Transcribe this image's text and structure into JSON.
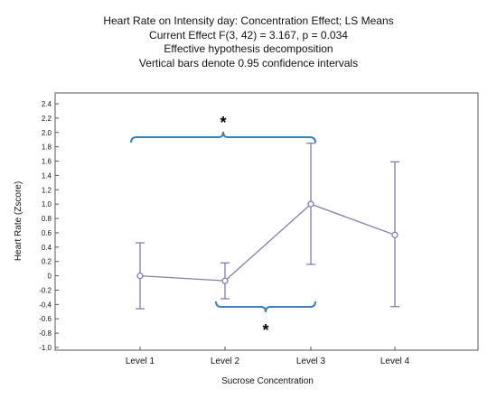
{
  "chart_data": {
    "type": "line",
    "title": "Heart Rate on Intensity day: Concentration Effect; LS Means",
    "subtitle_lines": [
      "Current Effect F(3, 42) = 3.167,  p = 0.034",
      "Effective hypothesis decomposition",
      "Vertical bars denote 0.95 confidence intervals"
    ],
    "xlabel": "Sucrose Concentration",
    "ylabel": "Heart Rate (Zscore)",
    "categories": [
      "Level 1",
      "Level 2",
      "Level 3",
      "Level 4"
    ],
    "series": [
      {
        "values": [
          0.0,
          -0.07,
          1.0,
          0.57
        ],
        "ci_lower": [
          -0.46,
          -0.32,
          0.16,
          -0.43
        ],
        "ci_upper": [
          0.46,
          0.18,
          1.85,
          1.59
        ]
      }
    ],
    "ylim": [
      -1.0,
      2.4
    ],
    "ytick_step": 0.2,
    "yticks": [
      "2.4",
      "2.2",
      "2.0",
      "1.8",
      "1.6",
      "1.4",
      "1.2",
      "1.0",
      "0.8",
      "0.6",
      "0.4",
      "0.2",
      "0",
      "-0.2",
      "-0.4",
      "-0.6",
      "-0.8",
      "-1.0"
    ],
    "grid": false,
    "annotations": [
      {
        "text": "*",
        "bracket_from": "Level 1",
        "bracket_to": "Level 3",
        "position": "top"
      },
      {
        "text": "*",
        "bracket_from": "Level 2",
        "bracket_to": "Level 3",
        "position": "bottom"
      }
    ],
    "colors": {
      "line": "#8080a8",
      "marker_fill": "#ffffff",
      "bracket": "#3d7fb8",
      "axis": "#555555"
    }
  }
}
